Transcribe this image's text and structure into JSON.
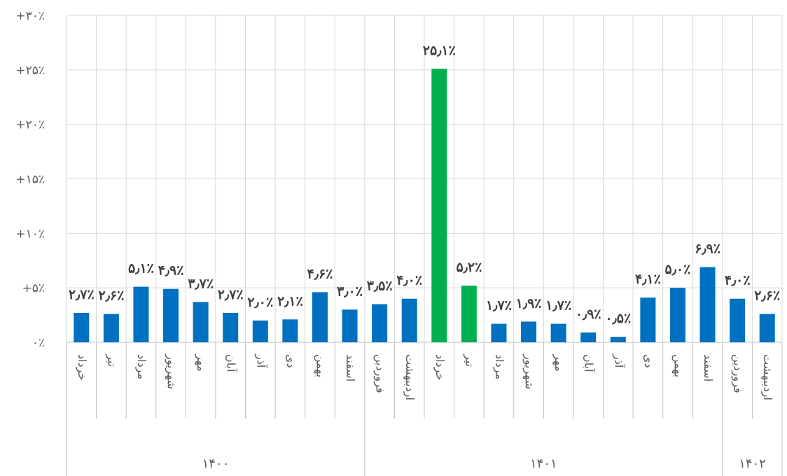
{
  "chart_data": {
    "type": "bar",
    "title": "",
    "xlabel": "",
    "ylabel": "",
    "ylim": [
      0,
      30
    ],
    "y_ticks": [
      0,
      5,
      10,
      15,
      20,
      25,
      30
    ],
    "y_tick_labels": [
      "۰٪",
      "+۵٪",
      "+۱۰٪",
      "+۱۵٪",
      "+۲۰٪",
      "+۲۵٪",
      "+۳۰٪"
    ],
    "grid": true,
    "legend": "none",
    "colors": {
      "default": "#0070c0",
      "highlight": "#00b050"
    },
    "categories": [
      "خرداد",
      "تیر",
      "مرداد",
      "شهریور",
      "مهر",
      "آبان",
      "آذر",
      "دی",
      "بهمن",
      "اسفند",
      "فروردین",
      "اردیبهشت",
      "خرداد",
      "تیر",
      "مرداد",
      "شهریور",
      "مهر",
      "آبان",
      "آذر",
      "دی",
      "بهمن",
      "اسفند",
      "فروردین",
      "اردیبهشت"
    ],
    "values": [
      2.7,
      2.6,
      5.1,
      4.9,
      3.7,
      2.7,
      2.0,
      2.1,
      4.6,
      3.0,
      3.5,
      4.0,
      25.1,
      5.2,
      1.7,
      1.9,
      1.7,
      0.9,
      0.5,
      4.1,
      5.0,
      6.9,
      4.0,
      2.6
    ],
    "data_labels": [
      "۲٫۷٪",
      "۲٫۶٪",
      "۵٫۱٪",
      "۴٫۹٪",
      "۳٫۷٪",
      "۲٫۷٪",
      "۲٫۰٪",
      "۲٫۱٪",
      "۴٫۶٪",
      "۳٫۰٪",
      "۳٫۵٪",
      "۴٫۰٪",
      "۲۵٫۱٪",
      "۵٫۲٪",
      "۱٫۷٪",
      "۱٫۹٪",
      "۱٫۷٪",
      "۰٫۹٪",
      "۰٫۵٪",
      "۴٫۱٪",
      "۵٫۰٪",
      "۶٫۹٪",
      "۴٫۰٪",
      "۲٫۶٪"
    ],
    "highlight": [
      false,
      false,
      false,
      false,
      false,
      false,
      false,
      false,
      false,
      false,
      false,
      false,
      true,
      true,
      false,
      false,
      false,
      false,
      false,
      false,
      false,
      false,
      false,
      false
    ],
    "groups": [
      {
        "label": "۱۴۰۰",
        "start": 0,
        "end": 9
      },
      {
        "label": "۱۴۰۱",
        "start": 10,
        "end": 21
      },
      {
        "label": "۱۴۰۲",
        "start": 22,
        "end": 23
      }
    ]
  }
}
